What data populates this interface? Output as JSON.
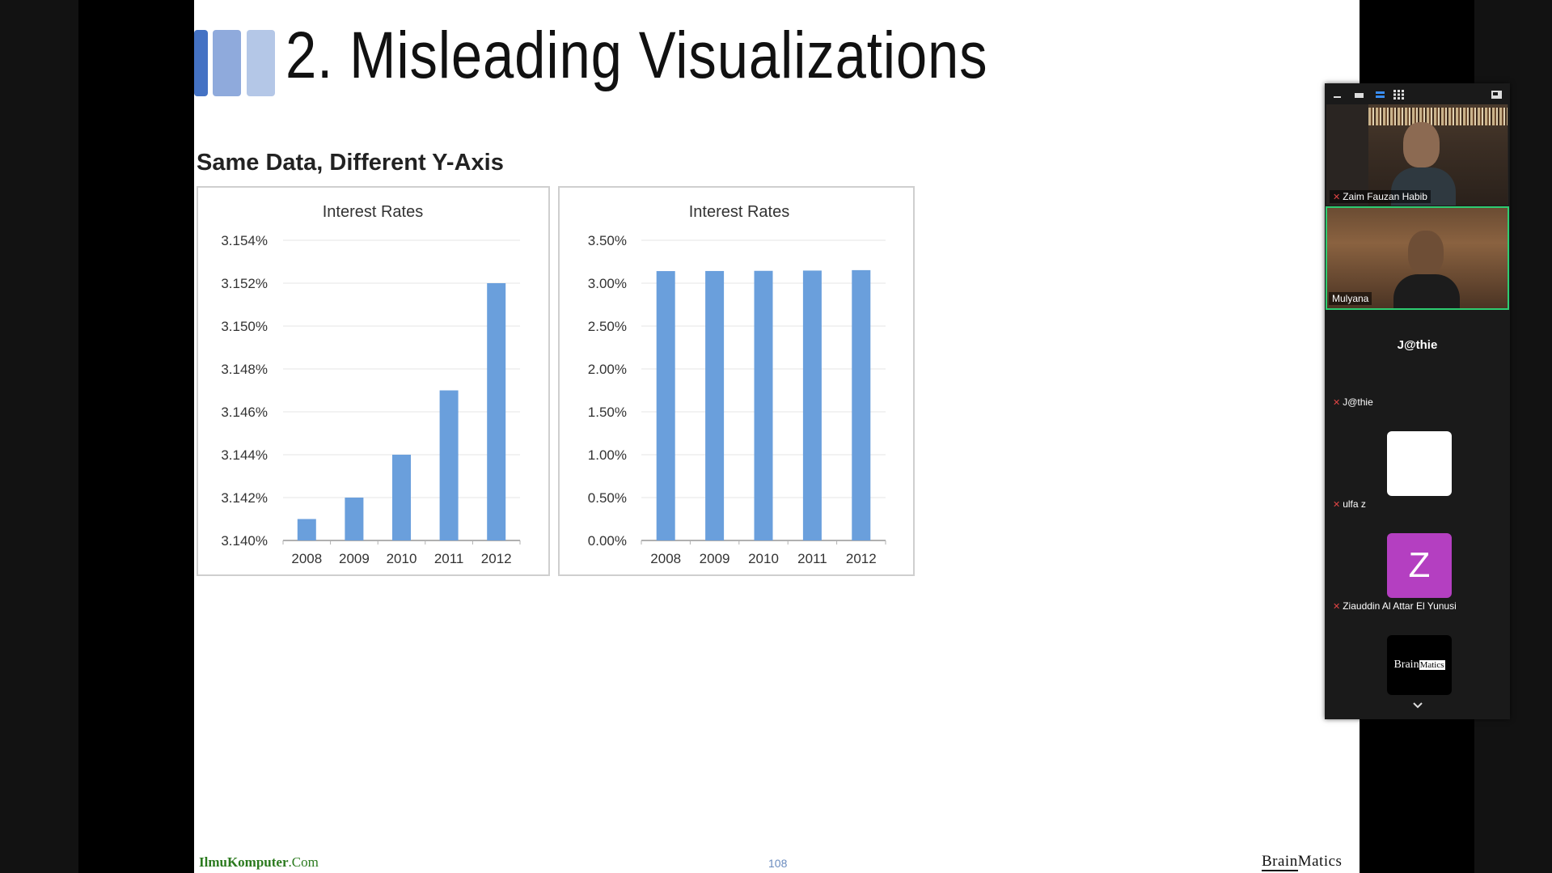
{
  "slide": {
    "title": "2. Misleading Visualizations",
    "subtitle": "Same Data, Different Y-Axis",
    "accent_colors": [
      "#4472c4",
      "#8faadc",
      "#b4c7e7"
    ],
    "footer_left_main": "IlmuKomputer",
    "footer_left_domain": ".Com",
    "page_number": "108",
    "footer_logo": {
      "brain": "Brain",
      "matics": "Matics"
    }
  },
  "chart_data": [
    {
      "type": "bar",
      "title": "Interest Rates",
      "categories": [
        "2008",
        "2009",
        "2010",
        "2011",
        "2012"
      ],
      "values": [
        3.141,
        3.142,
        3.144,
        3.147,
        3.152
      ],
      "ylim": [
        3.14,
        3.154
      ],
      "yticks": [
        "3.140%",
        "3.142%",
        "3.144%",
        "3.146%",
        "3.148%",
        "3.150%",
        "3.152%",
        "3.154%"
      ],
      "bar_color": "#6a9fdc",
      "grid": true
    },
    {
      "type": "bar",
      "title": "Interest Rates",
      "categories": [
        "2008",
        "2009",
        "2010",
        "2011",
        "2012"
      ],
      "values": [
        3.141,
        3.142,
        3.144,
        3.147,
        3.152
      ],
      "ylim": [
        0,
        3.5
      ],
      "yticks": [
        "0.00%",
        "0.50%",
        "1.00%",
        "1.50%",
        "2.00%",
        "2.50%",
        "3.00%",
        "3.50%"
      ],
      "bar_color": "#6a9fdc",
      "grid": true
    }
  ],
  "zoom": {
    "toolbar_icons": [
      "minimize-icon",
      "window-icon",
      "speaker-view-icon",
      "gallery-view-icon",
      "exit-fullscreen-icon"
    ],
    "participants": [
      {
        "name": "Zaim Fauzan Habib",
        "muted": true
      },
      {
        "name": "Mulyana",
        "muted": false,
        "active_speaker": true
      },
      {
        "name": "J@thie",
        "display_text": "J@thie",
        "muted": true
      },
      {
        "name": "ulfa z",
        "muted": true
      },
      {
        "name": "Ziauddin Al Attar El Yunusi",
        "avatar_letter": "Z",
        "avatar_color": "#b43fc1",
        "muted": true
      },
      {
        "name": "Brainmatics",
        "logo": {
          "brain": "Brain",
          "matics": "Matics"
        }
      }
    ],
    "active_border_color": "#2ecc71"
  }
}
